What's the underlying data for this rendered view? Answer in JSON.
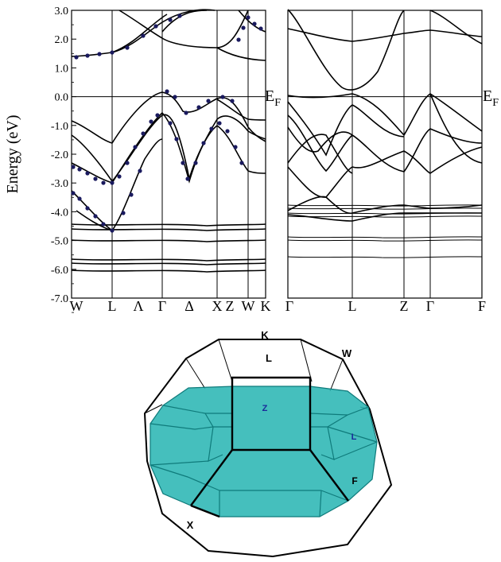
{
  "chart_data": [
    {
      "type": "line",
      "ylabel": "Energy (eV)",
      "ylim": [
        -7.0,
        3.0
      ],
      "y_ticks": [
        "3.0",
        "2.0",
        "1.0",
        "0.0",
        "-1.0",
        "-2.0",
        "-3.0",
        "-4.0",
        "-5.0",
        "-6.0",
        "-7.0"
      ],
      "k_labels": [
        "W",
        "L",
        "Λ",
        "Γ",
        "Δ",
        "X",
        "Z",
        "W",
        "K"
      ],
      "fermi_level_eV": 0.0
    },
    {
      "type": "line",
      "ylim": [
        -7.0,
        3.0
      ],
      "k_labels": [
        "Γ",
        "L",
        "Z",
        "Γ",
        "F"
      ],
      "fermi_left": "E",
      "fermi_left_sub": "F",
      "fermi_right": "E",
      "fermi_right_sub": "F",
      "fermi_level_eV": 0.0
    }
  ],
  "brillouin_zone": {
    "fill_color": "#2bb6b4",
    "labels": {
      "K": "K",
      "L_top": "L",
      "W": "W",
      "Z": "Z",
      "L_side": "L",
      "F": "F",
      "X": "X"
    },
    "label_color_inner": "#1a2a9a"
  }
}
